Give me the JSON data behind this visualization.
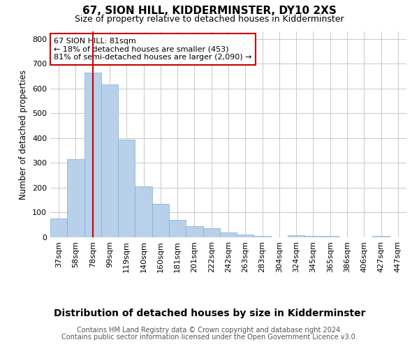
{
  "title": "67, SION HILL, KIDDERMINSTER, DY10 2XS",
  "subtitle": "Size of property relative to detached houses in Kidderminster",
  "xlabel": "Distribution of detached houses by size in Kidderminster",
  "ylabel": "Number of detached properties",
  "categories": [
    "37sqm",
    "58sqm",
    "78sqm",
    "99sqm",
    "119sqm",
    "140sqm",
    "160sqm",
    "181sqm",
    "201sqm",
    "222sqm",
    "242sqm",
    "263sqm",
    "283sqm",
    "304sqm",
    "324sqm",
    "345sqm",
    "365sqm",
    "386sqm",
    "406sqm",
    "427sqm",
    "447sqm"
  ],
  "values": [
    75,
    315,
    665,
    615,
    395,
    205,
    135,
    70,
    45,
    37,
    20,
    12,
    5,
    0,
    8,
    5,
    5,
    0,
    0,
    5,
    0
  ],
  "bar_color": "#b8d0ea",
  "bar_edge_color": "#7bafd4",
  "marker_index": 2,
  "marker_color": "#cc0000",
  "annotation_text": "67 SION HILL: 81sqm\n← 18% of detached houses are smaller (453)\n81% of semi-detached houses are larger (2,090) →",
  "annotation_box_color": "#ffffff",
  "annotation_box_edge": "#cc0000",
  "ylim": [
    0,
    830
  ],
  "yticks": [
    0,
    100,
    200,
    300,
    400,
    500,
    600,
    700,
    800
  ],
  "footer_line1": "Contains HM Land Registry data © Crown copyright and database right 2024.",
  "footer_line2": "Contains public sector information licensed under the Open Government Licence v3.0.",
  "title_fontsize": 11,
  "subtitle_fontsize": 9,
  "xlabel_fontsize": 10,
  "ylabel_fontsize": 8.5,
  "tick_fontsize": 8,
  "footer_fontsize": 7,
  "background_color": "#ffffff",
  "grid_color": "#c8c8c8"
}
